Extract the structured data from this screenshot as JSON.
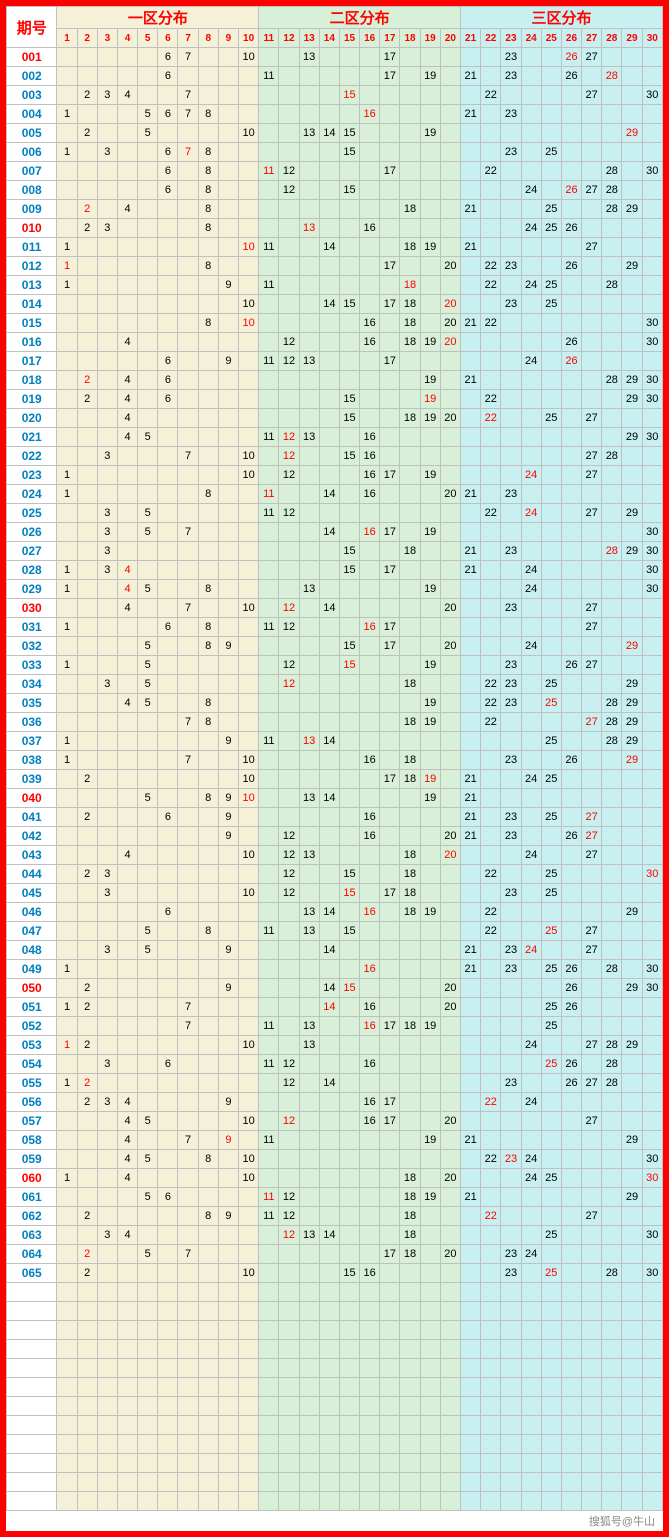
{
  "header": {
    "issue_label": "期号",
    "sections": [
      "一区分布",
      "二区分布",
      "三区分布"
    ]
  },
  "columns": [
    "1",
    "2",
    "3",
    "4",
    "5",
    "6",
    "7",
    "8",
    "9",
    "10",
    "11",
    "12",
    "13",
    "14",
    "15",
    "16",
    "17",
    "18",
    "19",
    "20",
    "21",
    "22",
    "23",
    "24",
    "25",
    "26",
    "27",
    "28",
    "29",
    "30"
  ],
  "layout": {
    "issue_col_width": 50,
    "num_col_width": 20,
    "zone_colors": {
      "z1": "#f5f0d8",
      "z2": "#d8f0d8",
      "z3": "#c8f0f0"
    },
    "border_color": "#ff0000",
    "grid_color": "#c0c0c0",
    "header_text_color": "#ff0000",
    "colnum_color": "#ff0000"
  },
  "issue_colors": {
    "red": [
      "001",
      "010",
      "030",
      "040",
      "050",
      "060"
    ],
    "blue": [
      "002",
      "003",
      "004",
      "005",
      "006",
      "007",
      "008",
      "009",
      "011",
      "012",
      "013",
      "014",
      "015",
      "016",
      "017",
      "018",
      "019",
      "020",
      "021",
      "022",
      "023",
      "024",
      "025",
      "026",
      "027",
      "028",
      "029",
      "031",
      "032",
      "033",
      "034",
      "035",
      "036",
      "037",
      "038",
      "039",
      "041",
      "042",
      "043",
      "044",
      "045",
      "046",
      "047",
      "048",
      "049",
      "051",
      "052",
      "053",
      "054",
      "055",
      "056",
      "057",
      "058",
      "059",
      "061",
      "062",
      "063",
      "064",
      "065"
    ]
  },
  "rows": [
    {
      "id": "001",
      "cells": {
        "6": "6",
        "7": "7",
        "10": "10",
        "13": "13",
        "17": "17",
        "23": "23",
        "26": "r26",
        "27": "27"
      }
    },
    {
      "id": "002",
      "cells": {
        "6": "6",
        "11": "11",
        "17": "17",
        "19": "19",
        "21": "21",
        "23": "23",
        "26": "26",
        "28": "r28"
      }
    },
    {
      "id": "003",
      "cells": {
        "2": "2",
        "3": "3",
        "4": "4",
        "7": "7",
        "15": "r15",
        "22": "22",
        "27": "27",
        "30": "30"
      }
    },
    {
      "id": "004",
      "cells": {
        "1": "1",
        "5": "5",
        "6": "6",
        "7": "7",
        "8": "8",
        "16": "r16",
        "21": "21",
        "23": "23"
      }
    },
    {
      "id": "005",
      "cells": {
        "2": "2",
        "5": "5",
        "10": "10",
        "13": "13",
        "14": "14",
        "15": "15",
        "19": "19",
        "29": "r29"
      }
    },
    {
      "id": "006",
      "cells": {
        "1": "1",
        "3": "3",
        "6": "6",
        "7": "r7",
        "8": "8",
        "15": "15",
        "23": "23",
        "25": "25"
      }
    },
    {
      "id": "007",
      "cells": {
        "6": "6",
        "8": "8",
        "11": "r11",
        "12": "12",
        "17": "17",
        "22": "22",
        "28": "28",
        "30": "30"
      }
    },
    {
      "id": "008",
      "cells": {
        "6": "6",
        "8": "8",
        "12": "12",
        "15": "15",
        "24": "24",
        "26": "r26",
        "27": "27",
        "28": "28"
      }
    },
    {
      "id": "009",
      "cells": {
        "2": "r2",
        "4": "4",
        "8": "8",
        "18": "18",
        "21": "21",
        "25": "25",
        "28": "28",
        "29": "29"
      }
    },
    {
      "id": "010",
      "cells": {
        "2": "2",
        "3": "3",
        "8": "8",
        "13": "r13",
        "16": "16",
        "24": "24",
        "25": "25",
        "26": "26"
      }
    },
    {
      "id": "011",
      "cells": {
        "1": "1",
        "10": "r10",
        "11": "11",
        "14": "14",
        "18": "18",
        "19": "19",
        "21": "21",
        "27": "27"
      }
    },
    {
      "id": "012",
      "cells": {
        "1": "r1",
        "8": "8",
        "17": "17",
        "20": "20",
        "22": "22",
        "23": "23",
        "26": "26",
        "29": "29"
      }
    },
    {
      "id": "013",
      "cells": {
        "1": "1",
        "9": "9",
        "11": "11",
        "18": "r18",
        "22": "22",
        "24": "24",
        "25": "25",
        "28": "28"
      }
    },
    {
      "id": "014",
      "cells": {
        "10": "10",
        "14": "14",
        "15": "15",
        "17": "17",
        "18": "18",
        "20": "r20",
        "23": "23",
        "25": "25"
      }
    },
    {
      "id": "015",
      "cells": {
        "8": "8",
        "10": "r10",
        "16": "16",
        "18": "18",
        "20": "20",
        "21": "21",
        "22": "22",
        "30": "30"
      }
    },
    {
      "id": "016",
      "cells": {
        "4": "4",
        "12": "12",
        "16": "16",
        "18": "18",
        "19": "19",
        "20": "r20",
        "26": "26",
        "30": "30"
      }
    },
    {
      "id": "017",
      "cells": {
        "6": "6",
        "9": "9",
        "11": "11",
        "12": "12",
        "13": "13",
        "17": "17",
        "24": "24",
        "26": "r26"
      }
    },
    {
      "id": "018",
      "cells": {
        "2": "r2",
        "4": "4",
        "6": "6",
        "19": "19",
        "21": "21",
        "28": "28",
        "29": "29",
        "30": "30"
      }
    },
    {
      "id": "019",
      "cells": {
        "2": "2",
        "4": "4",
        "6": "6",
        "15": "15",
        "19": "r19",
        "22": "22",
        "29": "29",
        "30": "30"
      }
    },
    {
      "id": "020",
      "cells": {
        "4": "4",
        "15": "15",
        "18": "18",
        "19": "19",
        "20": "20",
        "22": "r22",
        "25": "25",
        "27": "27"
      }
    },
    {
      "id": "021",
      "cells": {
        "4": "4",
        "5": "5",
        "11": "11",
        "12": "r12",
        "13": "13",
        "16": "16",
        "29": "29",
        "30": "30"
      }
    },
    {
      "id": "022",
      "cells": {
        "3": "3",
        "7": "7",
        "10": "10",
        "12": "r12",
        "15": "15",
        "16": "16",
        "27": "27",
        "28": "28"
      }
    },
    {
      "id": "023",
      "cells": {
        "1": "1",
        "10": "10",
        "12": "12",
        "16": "16",
        "17": "17",
        "19": "19",
        "24": "r24",
        "27": "27"
      }
    },
    {
      "id": "024",
      "cells": {
        "1": "1",
        "8": "8",
        "11": "r11",
        "14": "14",
        "16": "16",
        "20": "20",
        "21": "21",
        "23": "23"
      }
    },
    {
      "id": "025",
      "cells": {
        "3": "3",
        "5": "5",
        "11": "11",
        "12": "12",
        "22": "22",
        "24": "r24",
        "27": "27",
        "29": "29"
      }
    },
    {
      "id": "026",
      "cells": {
        "3": "3",
        "5": "5",
        "7": "7",
        "14": "14",
        "16": "r16",
        "17": "17",
        "19": "19",
        "30": "30"
      }
    },
    {
      "id": "027",
      "cells": {
        "3": "3",
        "15": "15",
        "18": "18",
        "21": "21",
        "23": "23",
        "28": "r28",
        "29": "29",
        "30": "30"
      }
    },
    {
      "id": "028",
      "cells": {
        "1": "1",
        "3": "3",
        "4": "r4",
        "15": "15",
        "17": "17",
        "21": "21",
        "24": "24",
        "30": "30"
      }
    },
    {
      "id": "029",
      "cells": {
        "1": "1",
        "4": "r4",
        "5": "5",
        "8": "8",
        "13": "13",
        "19": "19",
        "24": "24",
        "30": "30"
      }
    },
    {
      "id": "030",
      "cells": {
        "4": "4",
        "7": "7",
        "10": "10",
        "12": "r12",
        "14": "14",
        "20": "20",
        "23": "23",
        "27": "27"
      }
    },
    {
      "id": "031",
      "cells": {
        "1": "1",
        "6": "6",
        "8": "8",
        "11": "11",
        "12": "12",
        "16": "r16",
        "17": "17",
        "27": "27"
      }
    },
    {
      "id": "032",
      "cells": {
        "5": "5",
        "8": "8",
        "9": "9",
        "15": "15",
        "17": "17",
        "20": "20",
        "24": "24",
        "29": "r29"
      }
    },
    {
      "id": "033",
      "cells": {
        "1": "1",
        "5": "5",
        "12": "12",
        "15": "r15",
        "19": "19",
        "23": "23",
        "26": "26",
        "27": "27"
      }
    },
    {
      "id": "034",
      "cells": {
        "3": "3",
        "5": "5",
        "12": "r12",
        "18": "18",
        "22": "22",
        "23": "23",
        "25": "25",
        "29": "29"
      }
    },
    {
      "id": "035",
      "cells": {
        "4": "4",
        "5": "5",
        "8": "8",
        "19": "19",
        "22": "22",
        "23": "23",
        "25": "r25",
        "28": "28",
        "29": "29"
      }
    },
    {
      "id": "036",
      "cells": {
        "7": "7",
        "8": "8",
        "18": "18",
        "19": "19",
        "22": "22",
        "27": "r27",
        "28": "28",
        "29": "29"
      }
    },
    {
      "id": "037",
      "cells": {
        "1": "1",
        "9": "9",
        "11": "11",
        "13": "r13",
        "14": "14",
        "25": "25",
        "28": "28",
        "29": "29"
      }
    },
    {
      "id": "038",
      "cells": {
        "1": "1",
        "7": "7",
        "10": "10",
        "16": "16",
        "18": "18",
        "23": "23",
        "26": "26",
        "29": "r29"
      }
    },
    {
      "id": "039",
      "cells": {
        "2": "2",
        "10": "10",
        "17": "17",
        "18": "18",
        "19": "r19",
        "21": "21",
        "24": "24",
        "25": "25"
      }
    },
    {
      "id": "040",
      "cells": {
        "5": "5",
        "8": "8",
        "9": "9",
        "10": "r10",
        "13": "13",
        "14": "14",
        "19": "19",
        "21": "21"
      }
    },
    {
      "id": "041",
      "cells": {
        "2": "2",
        "6": "6",
        "9": "9",
        "16": "16",
        "21": "21",
        "23": "23",
        "25": "25",
        "27": "r27"
      }
    },
    {
      "id": "042",
      "cells": {
        "9": "9",
        "12": "12",
        "16": "16",
        "20": "20",
        "21": "21",
        "23": "23",
        "26": "26",
        "27": "r27"
      }
    },
    {
      "id": "043",
      "cells": {
        "4": "4",
        "10": "10",
        "12": "12",
        "13": "13",
        "18": "18",
        "20": "r20",
        "24": "24",
        "27": "27"
      }
    },
    {
      "id": "044",
      "cells": {
        "2": "2",
        "3": "3",
        "12": "12",
        "15": "15",
        "18": "18",
        "22": "22",
        "25": "25",
        "30": "r30"
      }
    },
    {
      "id": "045",
      "cells": {
        "3": "3",
        "10": "10",
        "12": "12",
        "15": "r15",
        "17": "17",
        "18": "18",
        "23": "23",
        "25": "25"
      }
    },
    {
      "id": "046",
      "cells": {
        "6": "6",
        "13": "13",
        "14": "14",
        "16": "r16",
        "18": "18",
        "19": "19",
        "22": "22",
        "29": "29"
      }
    },
    {
      "id": "047",
      "cells": {
        "5": "5",
        "8": "8",
        "11": "11",
        "13": "13",
        "15": "15",
        "22": "22",
        "25": "r25",
        "27": "27"
      }
    },
    {
      "id": "048",
      "cells": {
        "3": "3",
        "5": "5",
        "9": "9",
        "14": "14",
        "21": "21",
        "23": "23",
        "24": "r24",
        "27": "27"
      }
    },
    {
      "id": "049",
      "cells": {
        "1": "1",
        "16": "r16",
        "21": "21",
        "23": "23",
        "25": "25",
        "26": "26",
        "28": "28",
        "30": "30"
      }
    },
    {
      "id": "050",
      "cells": {
        "2": "2",
        "9": "9",
        "14": "14",
        "15": "r15",
        "20": "20",
        "26": "26",
        "29": "29",
        "30": "30"
      }
    },
    {
      "id": "051",
      "cells": {
        "1": "1",
        "2": "2",
        "7": "7",
        "14": "r14",
        "16": "16",
        "20": "20",
        "25": "25",
        "26": "26"
      }
    },
    {
      "id": "052",
      "cells": {
        "7": "7",
        "11": "11",
        "13": "13",
        "16": "r16",
        "17": "17",
        "18": "18",
        "19": "19",
        "25": "25"
      }
    },
    {
      "id": "053",
      "cells": {
        "1": "r1",
        "2": "2",
        "10": "10",
        "13": "13",
        "24": "24",
        "27": "27",
        "28": "28",
        "29": "29"
      }
    },
    {
      "id": "054",
      "cells": {
        "3": "3",
        "6": "6",
        "11": "11",
        "12": "12",
        "16": "16",
        "25": "r25",
        "26": "26",
        "28": "28"
      }
    },
    {
      "id": "055",
      "cells": {
        "1": "1",
        "2": "r2",
        "12": "12",
        "14": "14",
        "23": "23",
        "26": "26",
        "27": "27",
        "28": "28"
      }
    },
    {
      "id": "056",
      "cells": {
        "2": "2",
        "3": "3",
        "4": "4",
        "9": "9",
        "16": "16",
        "17": "17",
        "22": "r22",
        "24": "24"
      }
    },
    {
      "id": "057",
      "cells": {
        "4": "4",
        "5": "5",
        "10": "10",
        "12": "r12",
        "16": "16",
        "17": "17",
        "20": "20",
        "27": "27"
      }
    },
    {
      "id": "058",
      "cells": {
        "4": "4",
        "7": "7",
        "9": "r9",
        "11": "11",
        "19": "19",
        "21": "21",
        "29": "29"
      }
    },
    {
      "id": "059",
      "cells": {
        "4": "4",
        "5": "5",
        "8": "8",
        "10": "10",
        "22": "22",
        "23": "r23",
        "24": "24",
        "30": "30"
      }
    },
    {
      "id": "060",
      "cells": {
        "1": "1",
        "4": "4",
        "10": "10",
        "18": "18",
        "20": "20",
        "24": "24",
        "25": "25",
        "30": "r30"
      }
    },
    {
      "id": "061",
      "cells": {
        "5": "5",
        "6": "6",
        "11": "r11",
        "12": "12",
        "18": "18",
        "19": "19",
        "21": "21",
        "29": "29"
      }
    },
    {
      "id": "062",
      "cells": {
        "2": "2",
        "8": "8",
        "9": "9",
        "11": "11",
        "12": "12",
        "18": "18",
        "22": "r22",
        "27": "27"
      }
    },
    {
      "id": "063",
      "cells": {
        "3": "3",
        "4": "4",
        "12": "r12",
        "13": "13",
        "14": "14",
        "18": "18",
        "25": "25",
        "30": "30"
      }
    },
    {
      "id": "064",
      "cells": {
        "2": "r2",
        "5": "5",
        "7": "7",
        "17": "17",
        "18": "18",
        "20": "20",
        "23": "23",
        "24": "24"
      }
    },
    {
      "id": "065",
      "cells": {
        "2": "2",
        "10": "10",
        "15": "15",
        "16": "16",
        "23": "23",
        "25": "r25",
        "28": "28",
        "30": "30"
      }
    }
  ],
  "watermark": "搜狐号@牛山"
}
